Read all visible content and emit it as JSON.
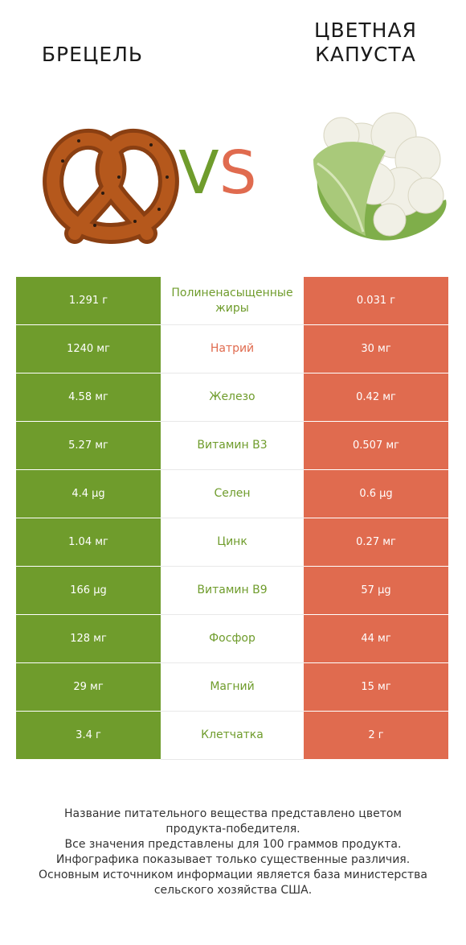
{
  "header": {
    "left_title": "БРЕЦЕЛЬ",
    "right_title_line1": "ЦВЕТНАЯ",
    "right_title_line2": "КАПУСТА",
    "vs_v": "V",
    "vs_s": "S"
  },
  "colors": {
    "left_product": "#6f9c2c",
    "right_product": "#e06b4f"
  },
  "rows": [
    {
      "left": "1.291 г",
      "nutrient": "Полиненасыщенные жиры",
      "right": "0.031 г",
      "winner": "left"
    },
    {
      "left": "1240 мг",
      "nutrient": "Натрий",
      "right": "30 мг",
      "winner": "right"
    },
    {
      "left": "4.58 мг",
      "nutrient": "Железо",
      "right": "0.42 мг",
      "winner": "left"
    },
    {
      "left": "5.27 мг",
      "nutrient": "Витамин B3",
      "right": "0.507 мг",
      "winner": "left"
    },
    {
      "left": "4.4 µg",
      "nutrient": "Селен",
      "right": "0.6 µg",
      "winner": "left"
    },
    {
      "left": "1.04 мг",
      "nutrient": "Цинк",
      "right": "0.27 мг",
      "winner": "left"
    },
    {
      "left": "166 µg",
      "nutrient": "Витамин B9",
      "right": "57 µg",
      "winner": "left"
    },
    {
      "left": "128 мг",
      "nutrient": "Фосфор",
      "right": "44 мг",
      "winner": "left"
    },
    {
      "left": "29 мг",
      "nutrient": "Магний",
      "right": "15 мг",
      "winner": "left"
    },
    {
      "left": "3.4 г",
      "nutrient": "Клетчатка",
      "right": "2 г",
      "winner": "left"
    }
  ],
  "footer": {
    "line1": "Название питательного вещества представлено цветом",
    "line2": "продукта-победителя.",
    "line3": "Все значения представлены для 100 граммов продукта.",
    "line4": "Инфографика показывает только существенные различия.",
    "line5": "Основным источником информации является база министерства",
    "line6": "сельского хозяйства США."
  }
}
